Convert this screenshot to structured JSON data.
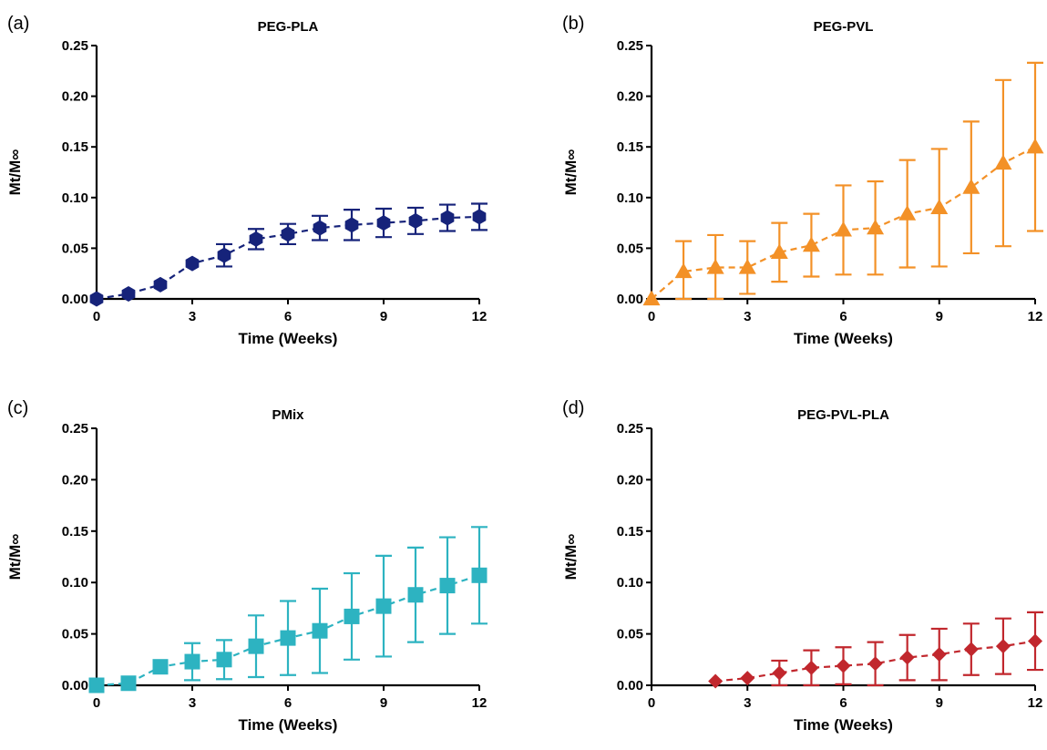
{
  "chart_data": [
    {
      "type": "line",
      "panel": "(a)",
      "title": "PEG-PLA",
      "xlabel": "Time (Weeks)",
      "ylabel": "Mt/M∞",
      "xlim": [
        0,
        12
      ],
      "ylim": [
        0,
        0.25
      ],
      "xticks": [
        "0",
        "3",
        "6",
        "9",
        "12"
      ],
      "yticks": [
        "0.00",
        "0.05",
        "0.10",
        "0.15",
        "0.20",
        "0.25"
      ],
      "marker": "hexagon",
      "color": "#16237a",
      "x": [
        0,
        1,
        2,
        3,
        4,
        5,
        6,
        7,
        8,
        9,
        10,
        11,
        12
      ],
      "y": [
        0.0,
        0.005,
        0.014,
        0.035,
        0.043,
        0.059,
        0.064,
        0.07,
        0.073,
        0.075,
        0.077,
        0.08,
        0.081
      ],
      "err": [
        0,
        0,
        0,
        0,
        0.011,
        0.01,
        0.01,
        0.012,
        0.015,
        0.014,
        0.013,
        0.013,
        0.013
      ]
    },
    {
      "type": "line",
      "panel": "(b)",
      "title": "PEG-PVL",
      "xlabel": "Time (Weeks)",
      "ylabel": "Mt/M∞",
      "xlim": [
        0,
        12
      ],
      "ylim": [
        0,
        0.25
      ],
      "xticks": [
        "0",
        "3",
        "6",
        "9",
        "12"
      ],
      "yticks": [
        "0.00",
        "0.05",
        "0.10",
        "0.15",
        "0.20",
        "0.25"
      ],
      "marker": "triangle",
      "color": "#f39127",
      "x": [
        0,
        1,
        2,
        3,
        4,
        5,
        6,
        7,
        8,
        9,
        10,
        11,
        12
      ],
      "y": [
        0.0,
        0.027,
        0.031,
        0.031,
        0.046,
        0.053,
        0.068,
        0.07,
        0.084,
        0.09,
        0.11,
        0.134,
        0.15
      ],
      "err": [
        0,
        0.03,
        0.032,
        0.026,
        0.029,
        0.031,
        0.044,
        0.046,
        0.053,
        0.058,
        0.065,
        0.082,
        0.083
      ]
    },
    {
      "type": "line",
      "panel": "(c)",
      "title": "PMix",
      "xlabel": "Time (Weeks)",
      "ylabel": "Mt/M∞",
      "xlim": [
        0,
        12
      ],
      "ylim": [
        0,
        0.25
      ],
      "xticks": [
        "0",
        "3",
        "6",
        "9",
        "12"
      ],
      "yticks": [
        "0.00",
        "0.05",
        "0.10",
        "0.15",
        "0.20",
        "0.25"
      ],
      "marker": "square",
      "color": "#2db3c1",
      "x": [
        0,
        1,
        2,
        3,
        4,
        5,
        6,
        7,
        8,
        9,
        10,
        11,
        12
      ],
      "y": [
        0.0,
        0.002,
        0.018,
        0.023,
        0.025,
        0.038,
        0.046,
        0.053,
        0.067,
        0.077,
        0.088,
        0.097,
        0.107
      ],
      "err": [
        0,
        0,
        0,
        0.018,
        0.019,
        0.03,
        0.036,
        0.041,
        0.042,
        0.049,
        0.046,
        0.047,
        0.047
      ]
    },
    {
      "type": "line",
      "panel": "(d)",
      "title": "PEG-PVL-PLA",
      "xlabel": "Time (Weeks)",
      "ylabel": "Mt/M∞",
      "xlim": [
        0,
        12
      ],
      "ylim": [
        0,
        0.25
      ],
      "xticks": [
        "0",
        "3",
        "6",
        "9",
        "12"
      ],
      "yticks": [
        "0.00",
        "0.05",
        "0.10",
        "0.15",
        "0.20",
        "0.25"
      ],
      "marker": "diamond",
      "color": "#c1272d",
      "x": [
        2,
        3,
        4,
        5,
        6,
        7,
        8,
        9,
        10,
        11,
        12
      ],
      "y": [
        0.004,
        0.007,
        0.012,
        0.017,
        0.019,
        0.021,
        0.027,
        0.03,
        0.035,
        0.038,
        0.043
      ],
      "err": [
        0,
        0,
        0.012,
        0.017,
        0.018,
        0.021,
        0.022,
        0.025,
        0.025,
        0.027,
        0.028
      ]
    }
  ]
}
